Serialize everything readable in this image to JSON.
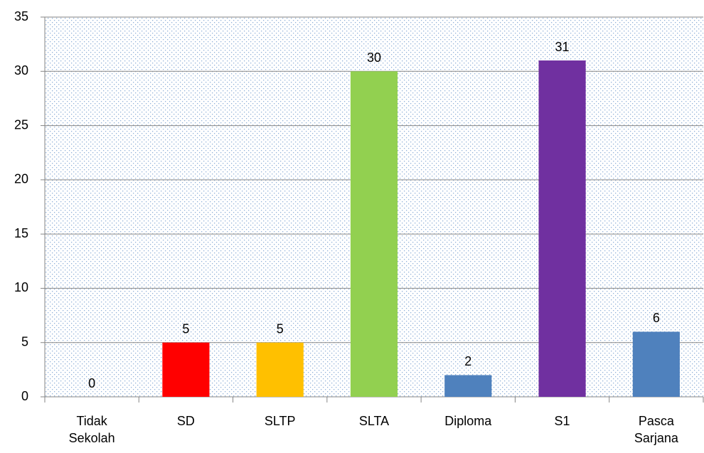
{
  "chart_data": {
    "type": "bar",
    "categories": [
      "Tidak Sekolah",
      "SD",
      "SLTP",
      "SLTA",
      "Diploma",
      "S1",
      "Pasca Sarjana"
    ],
    "values": [
      0,
      5,
      5,
      30,
      2,
      31,
      6
    ],
    "colors": [
      "#4f81bd",
      "#ff0000",
      "#ffc000",
      "#92d050",
      "#4f81bd",
      "#7030a0",
      "#4f81bd"
    ],
    "ylim": [
      0,
      35
    ],
    "yticks": [
      0,
      5,
      10,
      15,
      20,
      25,
      30,
      35
    ],
    "grid": true
  }
}
